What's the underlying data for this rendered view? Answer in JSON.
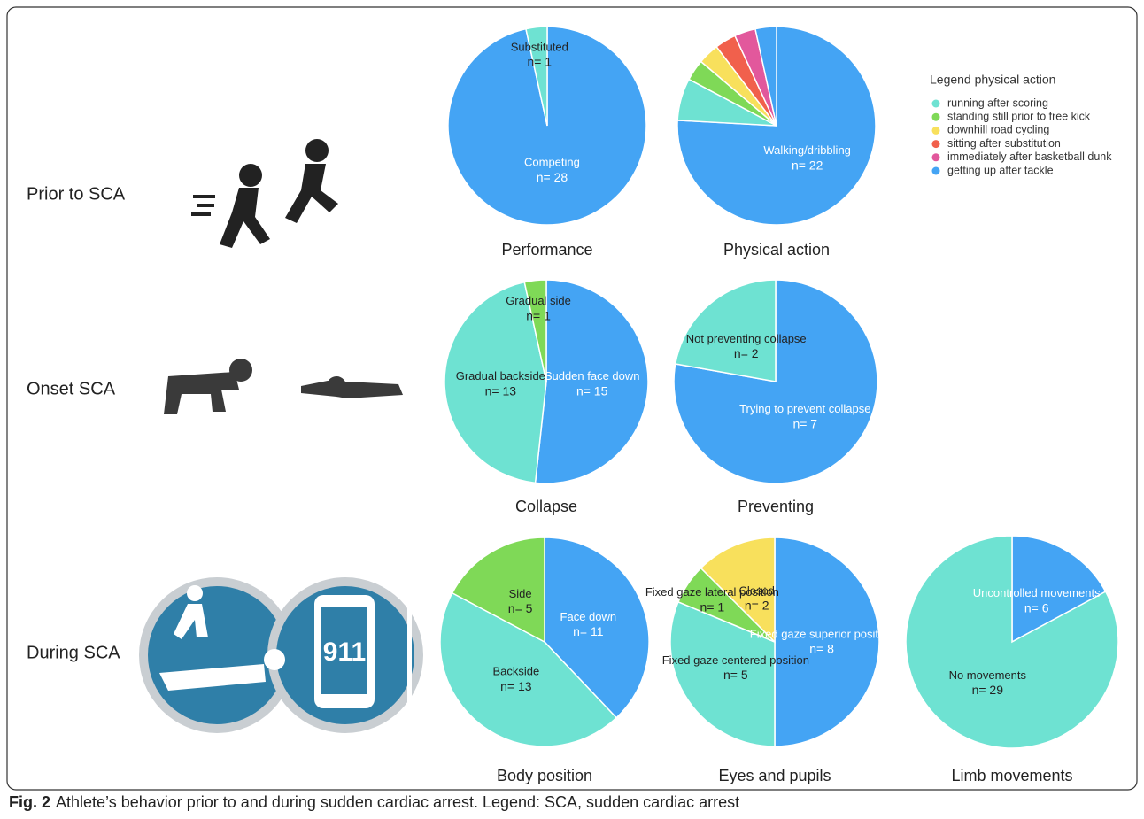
{
  "row_labels": [
    "Prior to SCA",
    "Onset SCA",
    "During SCA"
  ],
  "icon_text": "911",
  "caption": {
    "label": "Fig. 2",
    "text": "Athlete’s behavior prior to and during sudden cardiac arrest. Legend: SCA, sudden cardiac arrest"
  },
  "chart_data": [
    {
      "type": "pie",
      "title": "Performance",
      "categories": [
        "Competing",
        "Substituted"
      ],
      "values": [
        28,
        1
      ],
      "value_labels": [
        "n= 28",
        "n= 1"
      ],
      "colors": [
        "#44a4f4",
        "#6ee2d2"
      ]
    },
    {
      "type": "pie",
      "title": "Physical action",
      "legend": true,
      "legend_title": "Legend physical action",
      "categories": [
        "Walking/dribbling",
        "running after scoring",
        "standing still prior to free kick",
        "downhill road cycling",
        "sitting after substitution",
        "immediately after basketball dunk",
        "getting up after tackle"
      ],
      "values": [
        22,
        2,
        1,
        1,
        1,
        1,
        1
      ],
      "value_labels": [
        "n= 22",
        null,
        null,
        null,
        null,
        null,
        null
      ],
      "colors": [
        "#44a4f4",
        "#6ee2d2",
        "#7fd957",
        "#f8e05c",
        "#f1604c",
        "#e2589c",
        "#44a4f4"
      ]
    },
    {
      "type": "pie",
      "title": "Collapse",
      "categories": [
        "Sudden face down",
        "Gradual backside",
        "Gradual side"
      ],
      "values": [
        15,
        13,
        1
      ],
      "value_labels": [
        "n= 15",
        "n= 13",
        "n= 1"
      ],
      "colors": [
        "#44a4f4",
        "#6ee2d2",
        "#7fd957"
      ]
    },
    {
      "type": "pie",
      "title": "Preventing",
      "categories": [
        "Trying to prevent collapse",
        "Not preventing collapse"
      ],
      "values": [
        7,
        2
      ],
      "value_labels": [
        "n= 7",
        "n= 2"
      ],
      "colors": [
        "#44a4f4",
        "#6ee2d2"
      ]
    },
    {
      "type": "pie",
      "title": "Body position",
      "categories": [
        "Face down",
        "Backside",
        "Side"
      ],
      "values": [
        11,
        13,
        5
      ],
      "value_labels": [
        "n= 11",
        "n= 13",
        "n= 5"
      ],
      "colors": [
        "#44a4f4",
        "#6ee2d2",
        "#7fd957"
      ]
    },
    {
      "type": "pie",
      "title": "Eyes and pupils",
      "categories": [
        "Fixed gaze superior position",
        "Fixed gaze centered position",
        "Fixed gaze lateral position",
        "Closed"
      ],
      "values": [
        8,
        5,
        1,
        2
      ],
      "value_labels": [
        "n= 8",
        "n= 5",
        "n= 1",
        "n= 2"
      ],
      "colors": [
        "#44a4f4",
        "#6ee2d2",
        "#7fd957",
        "#f8e05c"
      ]
    },
    {
      "type": "pie",
      "title": "Limb movements",
      "categories": [
        "Uncontrolled movements",
        "No movements"
      ],
      "values": [
        6,
        29
      ],
      "value_labels": [
        "n= 6",
        "n= 29"
      ],
      "colors": [
        "#44a4f4",
        "#6ee2d2"
      ]
    }
  ]
}
